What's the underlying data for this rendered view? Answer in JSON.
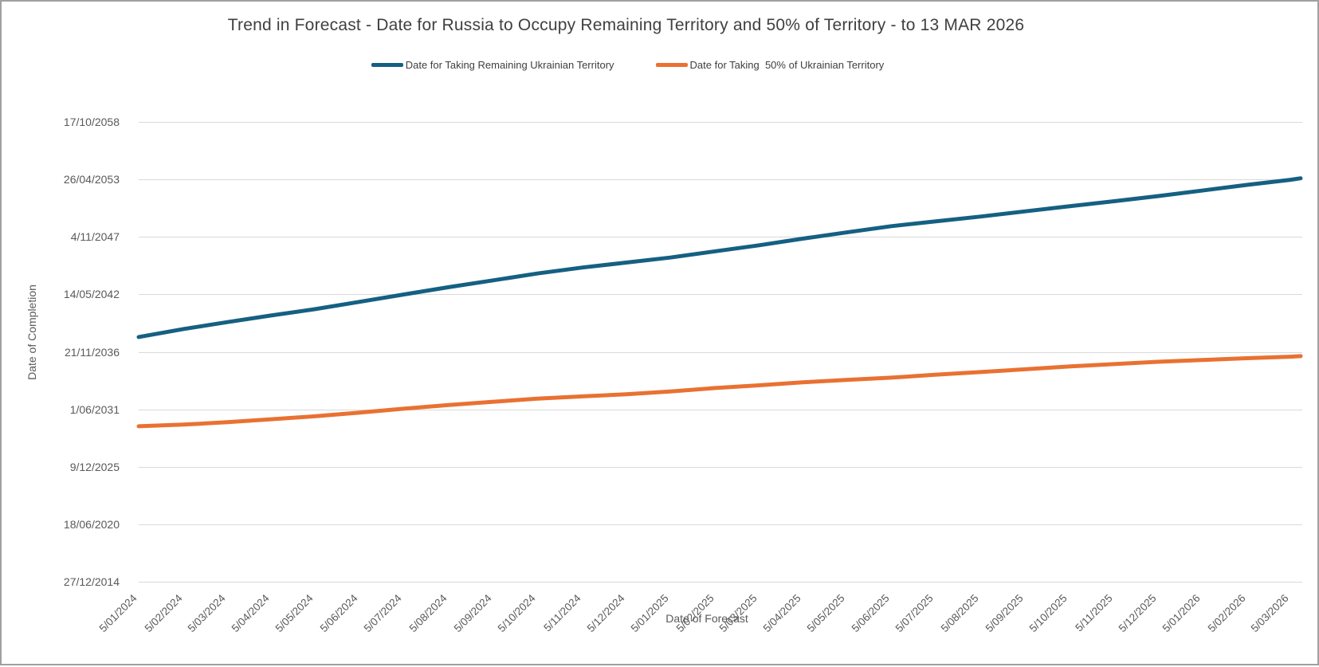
{
  "chart": {
    "title": "Trend in Forecast - Date for Russia to Occupy Remaining Territory and 50% of Territory - to 13 MAR 2026",
    "colors": {
      "series_remaining": "#156082",
      "series_50pct": "#e97132",
      "gridline": "#d9d9d9",
      "title_text": "#404040",
      "axis_text": "#595959"
    },
    "legend": [
      {
        "label": "Date for Taking Remaining Ukrainian Territory",
        "color": "#156082"
      },
      {
        "label": "Date for Taking  50% of Ukrainian Territory",
        "color": "#e97132"
      }
    ],
    "y_axis": {
      "title": "Date of Completion",
      "ticks": [
        {
          "label": "17/10/2058",
          "v": 2058.79
        },
        {
          "label": "26/04/2053",
          "v": 2053.32
        },
        {
          "label": "4/11/2047",
          "v": 2047.84
        },
        {
          "label": "14/05/2042",
          "v": 2042.37
        },
        {
          "label": "21/11/2036",
          "v": 2036.89
        },
        {
          "label": "1/06/2031",
          "v": 2031.42
        },
        {
          "label": "9/12/2025",
          "v": 2025.94
        },
        {
          "label": "18/06/2020",
          "v": 2020.46
        },
        {
          "label": "27/12/2014",
          "v": 2014.99
        }
      ]
    },
    "x_axis": {
      "title": "Date of Forecast",
      "ticks": [
        {
          "label": "5/01/2024",
          "v": 2024.011
        },
        {
          "label": "5/02/2024",
          "v": 2024.096
        },
        {
          "label": "5/03/2024",
          "v": 2024.178
        },
        {
          "label": "5/04/2024",
          "v": 2024.26
        },
        {
          "label": "5/05/2024",
          "v": 2024.342
        },
        {
          "label": "5/06/2024",
          "v": 2024.427
        },
        {
          "label": "5/07/2024",
          "v": 2024.509
        },
        {
          "label": "5/08/2024",
          "v": 2024.594
        },
        {
          "label": "5/09/2024",
          "v": 2024.679
        },
        {
          "label": "5/10/2024",
          "v": 2024.761
        },
        {
          "label": "5/11/2024",
          "v": 2024.846
        },
        {
          "label": "5/12/2024",
          "v": 2024.928
        },
        {
          "label": "5/01/2025",
          "v": 2025.011
        },
        {
          "label": "5/02/2025",
          "v": 2025.096
        },
        {
          "label": "5/03/2025",
          "v": 2025.178
        },
        {
          "label": "5/04/2025",
          "v": 2025.26
        },
        {
          "label": "5/05/2025",
          "v": 2025.342
        },
        {
          "label": "5/06/2025",
          "v": 2025.427
        },
        {
          "label": "5/07/2025",
          "v": 2025.509
        },
        {
          "label": "5/08/2025",
          "v": 2025.594
        },
        {
          "label": "5/09/2025",
          "v": 2025.679
        },
        {
          "label": "5/10/2025",
          "v": 2025.761
        },
        {
          "label": "5/11/2025",
          "v": 2025.846
        },
        {
          "label": "5/12/2025",
          "v": 2025.928
        },
        {
          "label": "5/01/2026",
          "v": 2026.011
        },
        {
          "label": "5/02/2026",
          "v": 2026.096
        },
        {
          "label": "5/03/2026",
          "v": 2026.178
        }
      ]
    }
  },
  "chart_data": {
    "type": "line",
    "title": "Trend in Forecast - Date for Russia to Occupy Remaining Territory and 50% of Territory - to 13 MAR 2026",
    "xlabel": "Date of Forecast",
    "ylabel": "Date of Completion",
    "x_tick_labels": [
      "5/01/2024",
      "5/02/2024",
      "5/03/2024",
      "5/04/2024",
      "5/05/2024",
      "5/06/2024",
      "5/07/2024",
      "5/08/2024",
      "5/09/2024",
      "5/10/2024",
      "5/11/2024",
      "5/12/2024",
      "5/01/2025",
      "5/02/2025",
      "5/03/2025",
      "5/04/2025",
      "5/05/2025",
      "5/06/2025",
      "5/07/2025",
      "5/08/2025",
      "5/09/2025",
      "5/10/2025",
      "5/11/2025",
      "5/12/2025",
      "5/01/2026",
      "5/02/2026",
      "5/03/2026"
    ],
    "y_tick_labels": [
      "27/12/2014",
      "18/06/2020",
      "9/12/2025",
      "1/06/2031",
      "21/11/2036",
      "14/05/2042",
      "4/11/2047",
      "26/04/2053",
      "17/10/2058"
    ],
    "xlim": [
      2024.011,
      2026.197
    ],
    "ylim": [
      2014.99,
      2058.79
    ],
    "grid": "horizontal",
    "legend_position": "top-center",
    "x": [
      2024.011,
      2024.096,
      2024.178,
      2024.26,
      2024.342,
      2024.427,
      2024.509,
      2024.594,
      2024.679,
      2024.761,
      2024.846,
      2024.928,
      2025.011,
      2025.096,
      2025.178,
      2025.26,
      2025.342,
      2025.427,
      2025.509,
      2025.594,
      2025.679,
      2025.761,
      2025.846,
      2025.928,
      2026.011,
      2026.096,
      2026.178,
      2026.197
    ],
    "series": [
      {
        "name": "Date for Taking Remaining Ukrainian Territory",
        "color": "#156082",
        "values": [
          2038.3,
          2039.07,
          2039.72,
          2040.35,
          2040.95,
          2041.66,
          2042.35,
          2043.05,
          2043.71,
          2044.35,
          2044.92,
          2045.39,
          2045.87,
          2046.47,
          2047.04,
          2047.67,
          2048.26,
          2048.86,
          2049.31,
          2049.77,
          2050.27,
          2050.75,
          2051.24,
          2051.72,
          2052.25,
          2052.79,
          2053.28,
          2053.42
        ]
      },
      {
        "name": "Date for Taking  50% of Ukrainian Territory",
        "color": "#e97132",
        "values": [
          2029.8,
          2029.96,
          2030.19,
          2030.47,
          2030.75,
          2031.1,
          2031.47,
          2031.83,
          2032.14,
          2032.43,
          2032.65,
          2032.85,
          2033.12,
          2033.44,
          2033.7,
          2033.98,
          2034.21,
          2034.43,
          2034.7,
          2034.96,
          2035.23,
          2035.49,
          2035.72,
          2035.94,
          2036.11,
          2036.28,
          2036.43,
          2036.48
        ]
      }
    ]
  }
}
